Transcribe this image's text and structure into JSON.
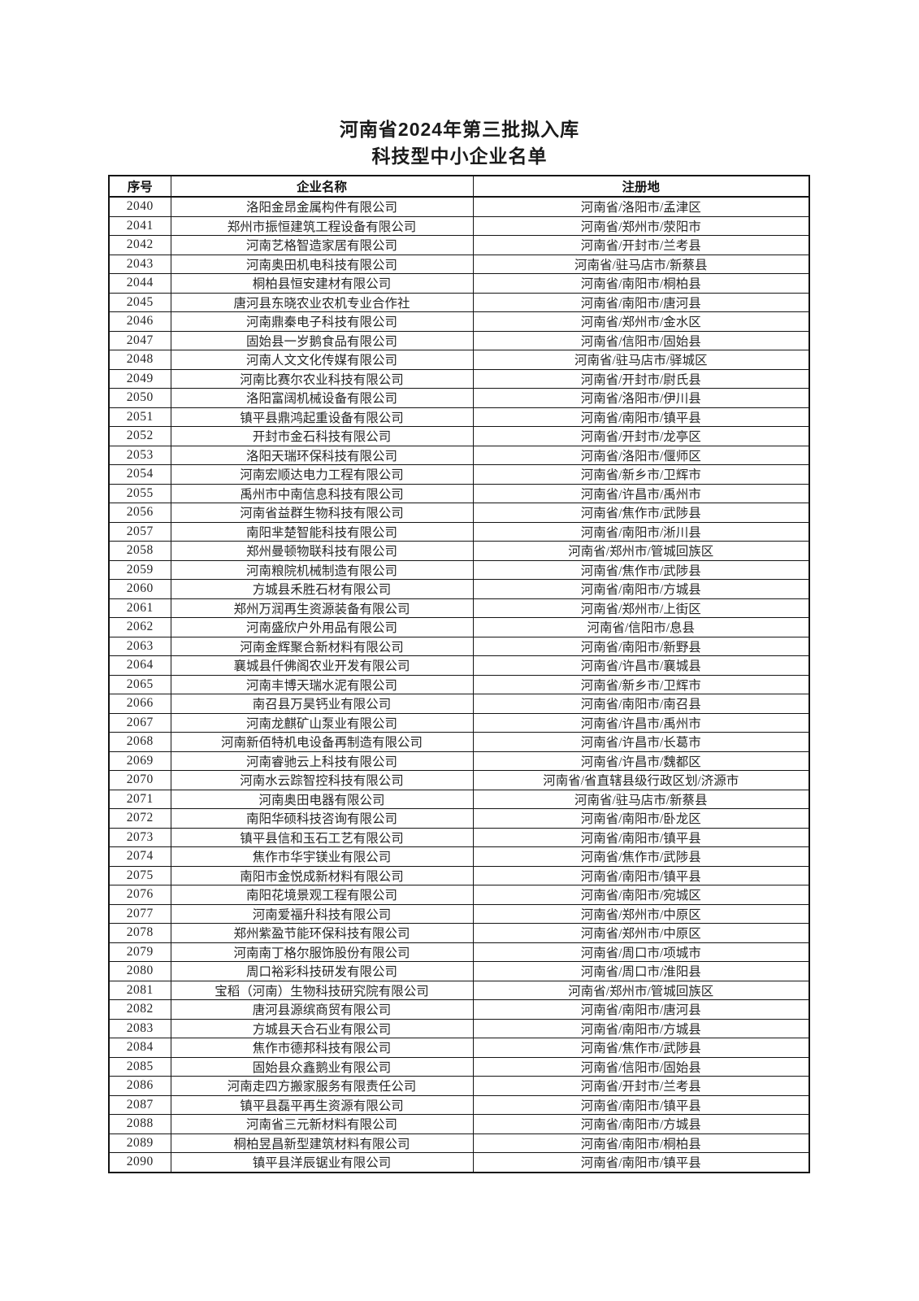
{
  "document": {
    "title_line1": "河南省2024年第三批拟入库",
    "title_line2": "科技型中小企业名单"
  },
  "table": {
    "headers": [
      "序号",
      "企业名称",
      "注册地"
    ],
    "rows": [
      {
        "no": "2040",
        "name": "洛阳金昂金属构件有限公司",
        "location": "河南省/洛阳市/孟津区"
      },
      {
        "no": "2041",
        "name": "郑州市振恒建筑工程设备有限公司",
        "location": "河南省/郑州市/荥阳市"
      },
      {
        "no": "2042",
        "name": "河南艺格智造家居有限公司",
        "location": "河南省/开封市/兰考县"
      },
      {
        "no": "2043",
        "name": "河南奥田机电科技有限公司",
        "location": "河南省/驻马店市/新蔡县"
      },
      {
        "no": "2044",
        "name": "桐柏县恒安建材有限公司",
        "location": "河南省/南阳市/桐柏县"
      },
      {
        "no": "2045",
        "name": "唐河县东晓农业农机专业合作社",
        "location": "河南省/南阳市/唐河县"
      },
      {
        "no": "2046",
        "name": "河南鼎秦电子科技有限公司",
        "location": "河南省/郑州市/金水区"
      },
      {
        "no": "2047",
        "name": "固始县一岁鹅食品有限公司",
        "location": "河南省/信阳市/固始县"
      },
      {
        "no": "2048",
        "name": "河南人文文化传媒有限公司",
        "location": "河南省/驻马店市/驿城区"
      },
      {
        "no": "2049",
        "name": "河南比赛尔农业科技有限公司",
        "location": "河南省/开封市/尉氏县"
      },
      {
        "no": "2050",
        "name": "洛阳富阔机械设备有限公司",
        "location": "河南省/洛阳市/伊川县"
      },
      {
        "no": "2051",
        "name": "镇平县鼎鸿起重设备有限公司",
        "location": "河南省/南阳市/镇平县"
      },
      {
        "no": "2052",
        "name": "开封市金石科技有限公司",
        "location": "河南省/开封市/龙亭区"
      },
      {
        "no": "2053",
        "name": "洛阳天瑞环保科技有限公司",
        "location": "河南省/洛阳市/偃师区"
      },
      {
        "no": "2054",
        "name": "河南宏顺达电力工程有限公司",
        "location": "河南省/新乡市/卫辉市"
      },
      {
        "no": "2055",
        "name": "禹州市中南信息科技有限公司",
        "location": "河南省/许昌市/禹州市"
      },
      {
        "no": "2056",
        "name": "河南省益群生物科技有限公司",
        "location": "河南省/焦作市/武陟县"
      },
      {
        "no": "2057",
        "name": "南阳芈楚智能科技有限公司",
        "location": "河南省/南阳市/淅川县"
      },
      {
        "no": "2058",
        "name": "郑州曼顿物联科技有限公司",
        "location": "河南省/郑州市/管城回族区"
      },
      {
        "no": "2059",
        "name": "河南粮院机械制造有限公司",
        "location": "河南省/焦作市/武陟县"
      },
      {
        "no": "2060",
        "name": "方城县禾胜石材有限公司",
        "location": "河南省/南阳市/方城县"
      },
      {
        "no": "2061",
        "name": "郑州万润再生资源装备有限公司",
        "location": "河南省/郑州市/上街区"
      },
      {
        "no": "2062",
        "name": "河南盛欣户外用品有限公司",
        "location": "河南省/信阳市/息县"
      },
      {
        "no": "2063",
        "name": "河南金辉聚合新材料有限公司",
        "location": "河南省/南阳市/新野县"
      },
      {
        "no": "2064",
        "name": "襄城县仟佛阁农业开发有限公司",
        "location": "河南省/许昌市/襄城县"
      },
      {
        "no": "2065",
        "name": "河南丰博天瑞水泥有限公司",
        "location": "河南省/新乡市/卫辉市"
      },
      {
        "no": "2066",
        "name": "南召县万昊钙业有限公司",
        "location": "河南省/南阳市/南召县"
      },
      {
        "no": "2067",
        "name": "河南龙麒矿山泵业有限公司",
        "location": "河南省/许昌市/禹州市"
      },
      {
        "no": "2068",
        "name": "河南新佰特机电设备再制造有限公司",
        "location": "河南省/许昌市/长葛市"
      },
      {
        "no": "2069",
        "name": "河南睿驰云上科技有限公司",
        "location": "河南省/许昌市/魏都区"
      },
      {
        "no": "2070",
        "name": "河南水云踪智控科技有限公司",
        "location": "河南省/省直辖县级行政区划/济源市"
      },
      {
        "no": "2071",
        "name": "河南奥田电器有限公司",
        "location": "河南省/驻马店市/新蔡县"
      },
      {
        "no": "2072",
        "name": "南阳华硕科技咨询有限公司",
        "location": "河南省/南阳市/卧龙区"
      },
      {
        "no": "2073",
        "name": "镇平县信和玉石工艺有限公司",
        "location": "河南省/南阳市/镇平县"
      },
      {
        "no": "2074",
        "name": "焦作市华宇镁业有限公司",
        "location": "河南省/焦作市/武陟县"
      },
      {
        "no": "2075",
        "name": "南阳市金悦成新材料有限公司",
        "location": "河南省/南阳市/镇平县"
      },
      {
        "no": "2076",
        "name": "南阳花境景观工程有限公司",
        "location": "河南省/南阳市/宛城区"
      },
      {
        "no": "2077",
        "name": "河南爱福升科技有限公司",
        "location": "河南省/郑州市/中原区"
      },
      {
        "no": "2078",
        "name": "郑州紫盈节能环保科技有限公司",
        "location": "河南省/郑州市/中原区"
      },
      {
        "no": "2079",
        "name": "河南南丁格尔服饰股份有限公司",
        "location": "河南省/周口市/项城市"
      },
      {
        "no": "2080",
        "name": "周口裕彩科技研发有限公司",
        "location": "河南省/周口市/淮阳县"
      },
      {
        "no": "2081",
        "name": "宝稻（河南）生物科技研究院有限公司",
        "location": "河南省/郑州市/管城回族区"
      },
      {
        "no": "2082",
        "name": "唐河县源缤商贸有限公司",
        "location": "河南省/南阳市/唐河县"
      },
      {
        "no": "2083",
        "name": "方城县天合石业有限公司",
        "location": "河南省/南阳市/方城县"
      },
      {
        "no": "2084",
        "name": "焦作市德邦科技有限公司",
        "location": "河南省/焦作市/武陟县"
      },
      {
        "no": "2085",
        "name": "固始县众鑫鹅业有限公司",
        "location": "河南省/信阳市/固始县"
      },
      {
        "no": "2086",
        "name": "河南走四方搬家服务有限责任公司",
        "location": "河南省/开封市/兰考县"
      },
      {
        "no": "2087",
        "name": "镇平县磊平再生资源有限公司",
        "location": "河南省/南阳市/镇平县"
      },
      {
        "no": "2088",
        "name": "河南省三元新材料有限公司",
        "location": "河南省/南阳市/方城县"
      },
      {
        "no": "2089",
        "name": "桐柏昱昌新型建筑材料有限公司",
        "location": "河南省/南阳市/桐柏县"
      },
      {
        "no": "2090",
        "name": "镇平县洋辰锯业有限公司",
        "location": "河南省/南阳市/镇平县"
      }
    ]
  }
}
